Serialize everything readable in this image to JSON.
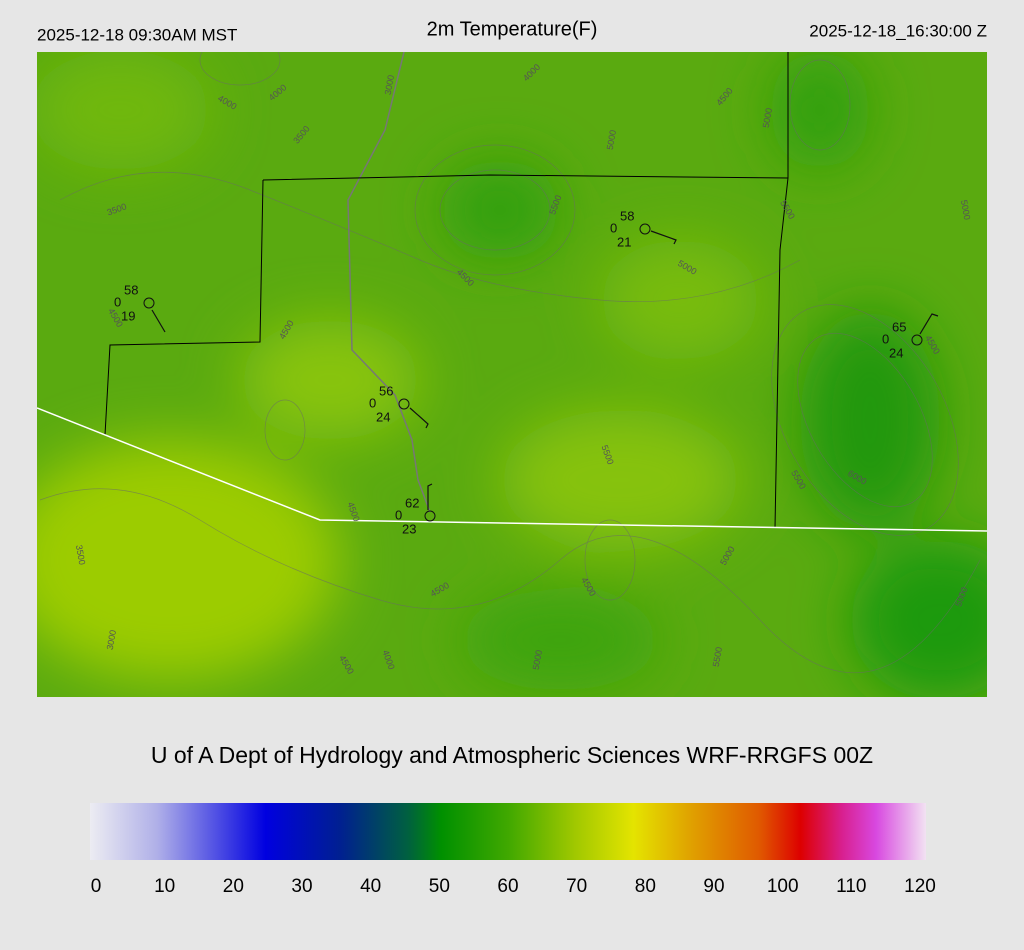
{
  "header": {
    "local_time": "2025-12-18 09:30AM MST",
    "title": "2m Temperature(F)",
    "utc_time": "2025-12-18_16:30:00 Z"
  },
  "map": {
    "stations": [
      {
        "temperature": 58,
        "wind": 0,
        "dewpoint": 19
      },
      {
        "temperature": 56,
        "wind": 0,
        "dewpoint": 24
      },
      {
        "temperature": 62,
        "wind": 0,
        "dewpoint": 23
      },
      {
        "temperature": 58,
        "wind": 0,
        "dewpoint": 21
      },
      {
        "temperature": 65,
        "wind": 0,
        "dewpoint": 24
      }
    ],
    "contour_labels": [
      4000,
      4000,
      3000,
      3500,
      4000,
      4500,
      5000,
      5000,
      3500,
      5500,
      5500,
      5000,
      4500,
      4500,
      4500,
      4500,
      5000,
      5500,
      5500,
      6000,
      4500,
      3500,
      5000,
      4500,
      4500,
      5000,
      3000,
      4500,
      4000,
      5000,
      5500
    ]
  },
  "footer": {
    "credit": "U of A Dept of Hydrology and Atmospheric Sciences WRF-RRGFS 00Z"
  },
  "colorbar": {
    "ticks": [
      0,
      10,
      20,
      30,
      40,
      50,
      60,
      70,
      80,
      90,
      100,
      110,
      120
    ]
  }
}
